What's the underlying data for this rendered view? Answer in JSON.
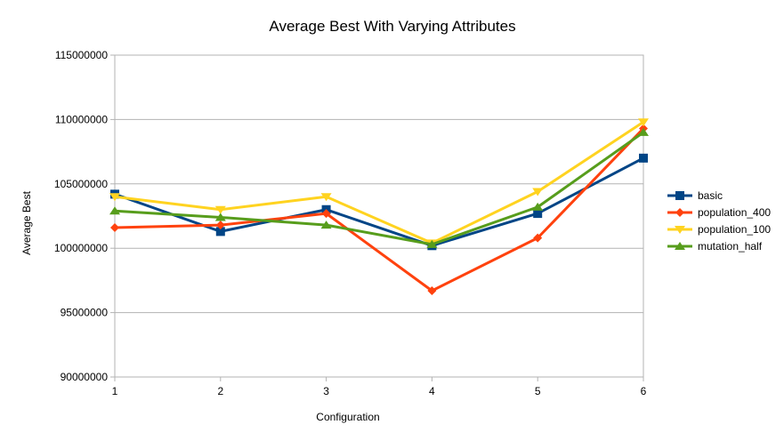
{
  "chart_data": {
    "type": "line",
    "title": "Average Best With Varying Attributes",
    "xlabel": "Configuration",
    "ylabel": "Average Best",
    "x": [
      1,
      2,
      3,
      4,
      5,
      6
    ],
    "x_tick_labels": [
      "1",
      "2",
      "3",
      "4",
      "5",
      "6"
    ],
    "ylim": [
      90000000,
      115000000
    ],
    "y_tick_labels": [
      "90000000",
      "95000000",
      "100000000",
      "105000000",
      "110000000",
      "115000000"
    ],
    "y_ticks": [
      90000000,
      95000000,
      100000000,
      105000000,
      110000000,
      115000000
    ],
    "grid": "horizontal",
    "legend_position": "right",
    "series": [
      {
        "name": "basic",
        "color": "#004586",
        "marker": "square",
        "values": [
          104200000,
          101300000,
          103000000,
          100200000,
          102700000,
          107000000
        ]
      },
      {
        "name": "population_400",
        "color": "#ff420e",
        "marker": "diamond",
        "values": [
          101600000,
          101800000,
          102700000,
          96700000,
          100800000,
          109300000
        ]
      },
      {
        "name": "population_100",
        "color": "#ffd320",
        "marker": "triangle-down",
        "values": [
          104000000,
          103000000,
          104000000,
          100400000,
          104400000,
          109800000
        ]
      },
      {
        "name": "mutation_half",
        "color": "#579d1c",
        "marker": "triangle-up",
        "values": [
          102900000,
          102400000,
          101800000,
          100300000,
          103200000,
          109000000
        ]
      }
    ]
  }
}
